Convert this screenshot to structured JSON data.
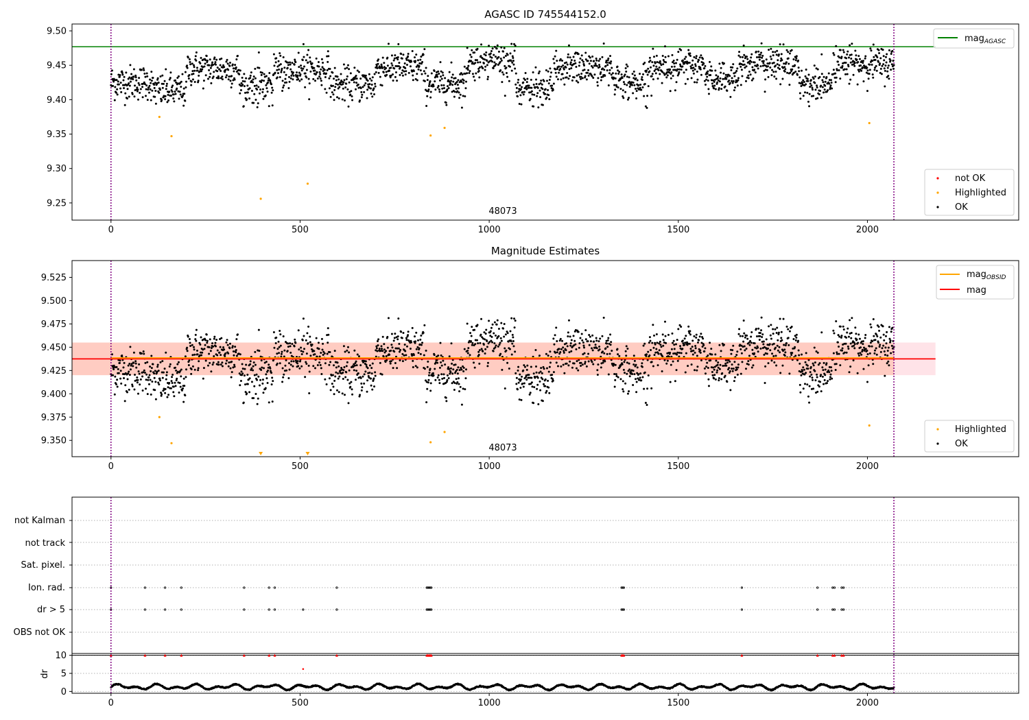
{
  "figure": {
    "title": "AGASC ID 745544152.0"
  },
  "panel1": {
    "annotation": "48073",
    "legend_line": {
      "label": "mag",
      "sub": "AGASC"
    },
    "legend_points": [
      "not OK",
      "Highlighted",
      "OK"
    ]
  },
  "panel2": {
    "title": "Magnitude Estimates",
    "annotation": "48073",
    "legend_lines": [
      {
        "label": "mag",
        "sub": "OBSID"
      },
      {
        "label": "mag",
        "sub": ""
      }
    ],
    "legend_points": [
      "Highlighted",
      "OK"
    ]
  },
  "panel3": {
    "flag_labels": [
      "not Kalman",
      "not track",
      "Sat. pixel.",
      "Ion. rad.",
      "dr > 5",
      "OBS not OK"
    ],
    "dr_ylabel": "dr"
  },
  "colors": {
    "ok": "#000000",
    "highlighted": "#ffa500",
    "not_ok": "#ff0000",
    "mag_agasc": "#008000",
    "mag_obsid": "#ffa500",
    "mag": "#ff0000",
    "band_outer": "#ffc0cb",
    "band_inner": "#ffa07a",
    "obs_boundary": "#800080"
  },
  "chart_data": [
    {
      "type": "scatter",
      "title": "AGASC ID 745544152.0",
      "xlim": [
        -103,
        2400
      ],
      "ylim": [
        9.225,
        9.51
      ],
      "xticks": [
        0,
        500,
        1000,
        1500,
        2000
      ],
      "yticks": [
        9.25,
        9.3,
        9.35,
        9.4,
        9.45,
        9.5
      ],
      "hlines": [
        {
          "name": "mag_AGASC",
          "y": 9.477,
          "x_end": 2180
        }
      ],
      "vlines": [
        0,
        2070
      ],
      "annotations": [
        {
          "text": "48073",
          "x": 1035,
          "y": 9.232
        }
      ],
      "highlighted": [
        [
          128,
          9.375
        ],
        [
          160,
          9.347
        ],
        [
          396,
          9.256
        ],
        [
          520,
          9.278
        ],
        [
          845,
          9.348
        ],
        [
          882,
          9.359
        ],
        [
          2005,
          9.366
        ]
      ],
      "ok_segments": [
        {
          "x": [
            0,
            110
          ],
          "mean": 9.425
        },
        {
          "x": [
            110,
            200
          ],
          "mean": 9.413
        },
        {
          "x": [
            200,
            340
          ],
          "mean": 9.445
        },
        {
          "x": [
            340,
            430
          ],
          "mean": 9.421
        },
        {
          "x": [
            430,
            580
          ],
          "mean": 9.443
        },
        {
          "x": [
            580,
            700
          ],
          "mean": 9.422
        },
        {
          "x": [
            700,
            830
          ],
          "mean": 9.447
        },
        {
          "x": [
            830,
            940
          ],
          "mean": 9.424
        },
        {
          "x": [
            940,
            1070
          ],
          "mean": 9.456
        },
        {
          "x": [
            1070,
            1170
          ],
          "mean": 9.415
        },
        {
          "x": [
            1170,
            1330
          ],
          "mean": 9.447
        },
        {
          "x": [
            1330,
            1420
          ],
          "mean": 9.425
        },
        {
          "x": [
            1420,
            1570
          ],
          "mean": 9.448
        },
        {
          "x": [
            1570,
            1660
          ],
          "mean": 9.432
        },
        {
          "x": [
            1660,
            1820
          ],
          "mean": 9.452
        },
        {
          "x": [
            1820,
            1910
          ],
          "mean": 9.422
        },
        {
          "x": [
            1910,
            2070
          ],
          "mean": 9.452
        }
      ]
    },
    {
      "type": "scatter",
      "title": "Magnitude Estimates",
      "xlim": [
        -103,
        2400
      ],
      "ylim": [
        9.3325,
        9.543
      ],
      "xticks": [
        0,
        500,
        1000,
        1500,
        2000
      ],
      "yticks": [
        9.35,
        9.375,
        9.4,
        9.425,
        9.45,
        9.475,
        9.5,
        9.525
      ],
      "hlines": [
        {
          "name": "mag_OBSID",
          "y": 9.4375,
          "x_end": 2070
        },
        {
          "name": "mag",
          "y": 9.4375,
          "x_end": 2180
        }
      ],
      "bands": [
        {
          "name": "mag",
          "ymin": 9.42,
          "ymax": 9.455,
          "x_end": 2180
        },
        {
          "name": "mag_OBSID",
          "ymin": 9.42,
          "ymax": 9.455,
          "x_end": 2070
        }
      ],
      "vlines": [
        0,
        2070
      ],
      "annotations": [
        {
          "text": "48073",
          "x": 1035,
          "y": 9.339
        }
      ],
      "highlighted": [
        [
          128,
          9.375
        ],
        [
          160,
          9.347
        ],
        [
          845,
          9.348
        ],
        [
          882,
          9.359
        ],
        [
          2005,
          9.366
        ]
      ],
      "clipped_markers": [
        396,
        520
      ]
    },
    {
      "type": "scatter",
      "xlim": [
        -103,
        2400
      ],
      "xticks": [
        0,
        500,
        1000,
        1500,
        2000
      ],
      "vlines": [
        0,
        2070
      ],
      "flags": {
        "Ion. rad.": [
          0,
          90,
          143,
          186,
          352,
          418,
          433,
          597,
          835,
          838,
          841,
          844,
          847,
          1350,
          1353,
          1356,
          1668,
          1868,
          1908,
          1913,
          1932,
          1937
        ],
        "dr > 5": [
          0,
          90,
          143,
          186,
          352,
          418,
          433,
          508,
          597,
          835,
          838,
          841,
          844,
          847,
          1350,
          1353,
          1356,
          1668,
          1868,
          1908,
          1913,
          1932,
          1937
        ]
      },
      "dr": {
        "ylim": [
          -0.5,
          10.5
        ],
        "yticks": [
          0,
          5,
          10
        ],
        "hline": 10,
        "not_ok": [
          [
            0,
            10
          ],
          [
            90,
            10
          ],
          [
            143,
            10
          ],
          [
            186,
            10
          ],
          [
            352,
            10
          ],
          [
            418,
            10
          ],
          [
            433,
            10
          ],
          [
            508,
            6.2
          ],
          [
            597,
            10
          ],
          [
            835,
            10
          ],
          [
            838,
            10
          ],
          [
            841,
            10
          ],
          [
            844,
            10
          ],
          [
            847,
            10
          ],
          [
            1350,
            10
          ],
          [
            1353,
            10
          ],
          [
            1356,
            10
          ],
          [
            1668,
            10
          ],
          [
            1868,
            10
          ],
          [
            1908,
            10
          ],
          [
            1913,
            10
          ],
          [
            1932,
            10
          ],
          [
            1937,
            10
          ]
        ],
        "ok_range": [
          0.3,
          2.2
        ]
      }
    }
  ]
}
